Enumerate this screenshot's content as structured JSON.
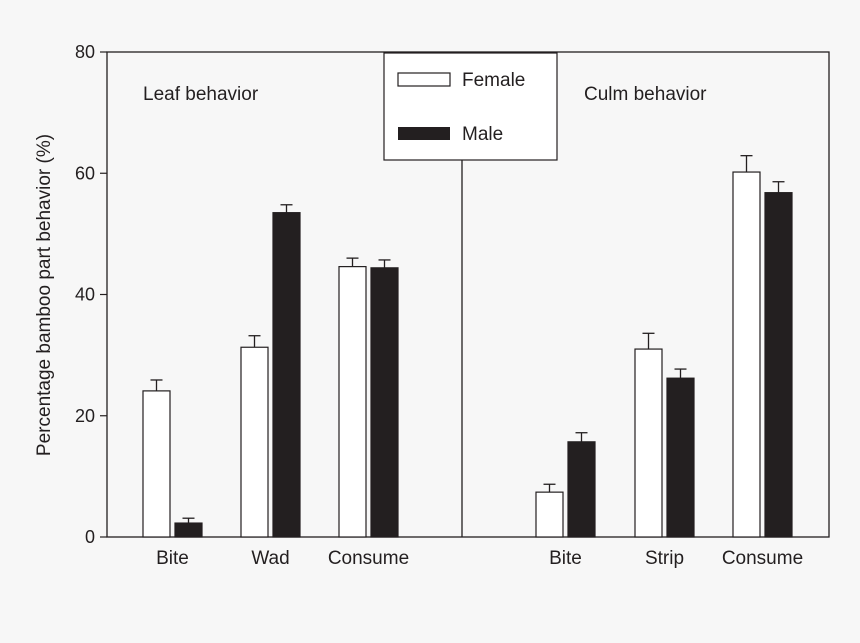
{
  "chart_data": {
    "type": "bar",
    "ylabel": "Percentage bamboo part behavior (%)",
    "ylim": [
      0,
      80
    ],
    "yticks": [
      0,
      20,
      40,
      60,
      80
    ],
    "grid": false,
    "legend_placement": "top-center",
    "colors": {
      "Female": "#ffffff",
      "Male": "#231f20"
    },
    "panels": [
      {
        "title": "Leaf behavior",
        "categories": [
          "Bite",
          "Wad",
          "Consume"
        ],
        "series": [
          {
            "name": "Female",
            "values": [
              24.1,
              31.3,
              44.6
            ],
            "error": [
              1.8,
              1.9,
              1.4
            ]
          },
          {
            "name": "Male",
            "values": [
              2.3,
              53.5,
              44.4
            ],
            "error": [
              0.8,
              1.3,
              1.3
            ]
          }
        ]
      },
      {
        "title": "Culm behavior",
        "categories": [
          "Bite",
          "Strip",
          "Consume"
        ],
        "series": [
          {
            "name": "Female",
            "values": [
              7.4,
              31.0,
              60.2
            ],
            "error": [
              1.3,
              2.6,
              2.7
            ]
          },
          {
            "name": "Male",
            "values": [
              15.7,
              26.2,
              56.8
            ],
            "error": [
              1.5,
              1.5,
              1.8
            ]
          }
        ]
      }
    ],
    "legend": [
      "Female",
      "Male"
    ]
  }
}
